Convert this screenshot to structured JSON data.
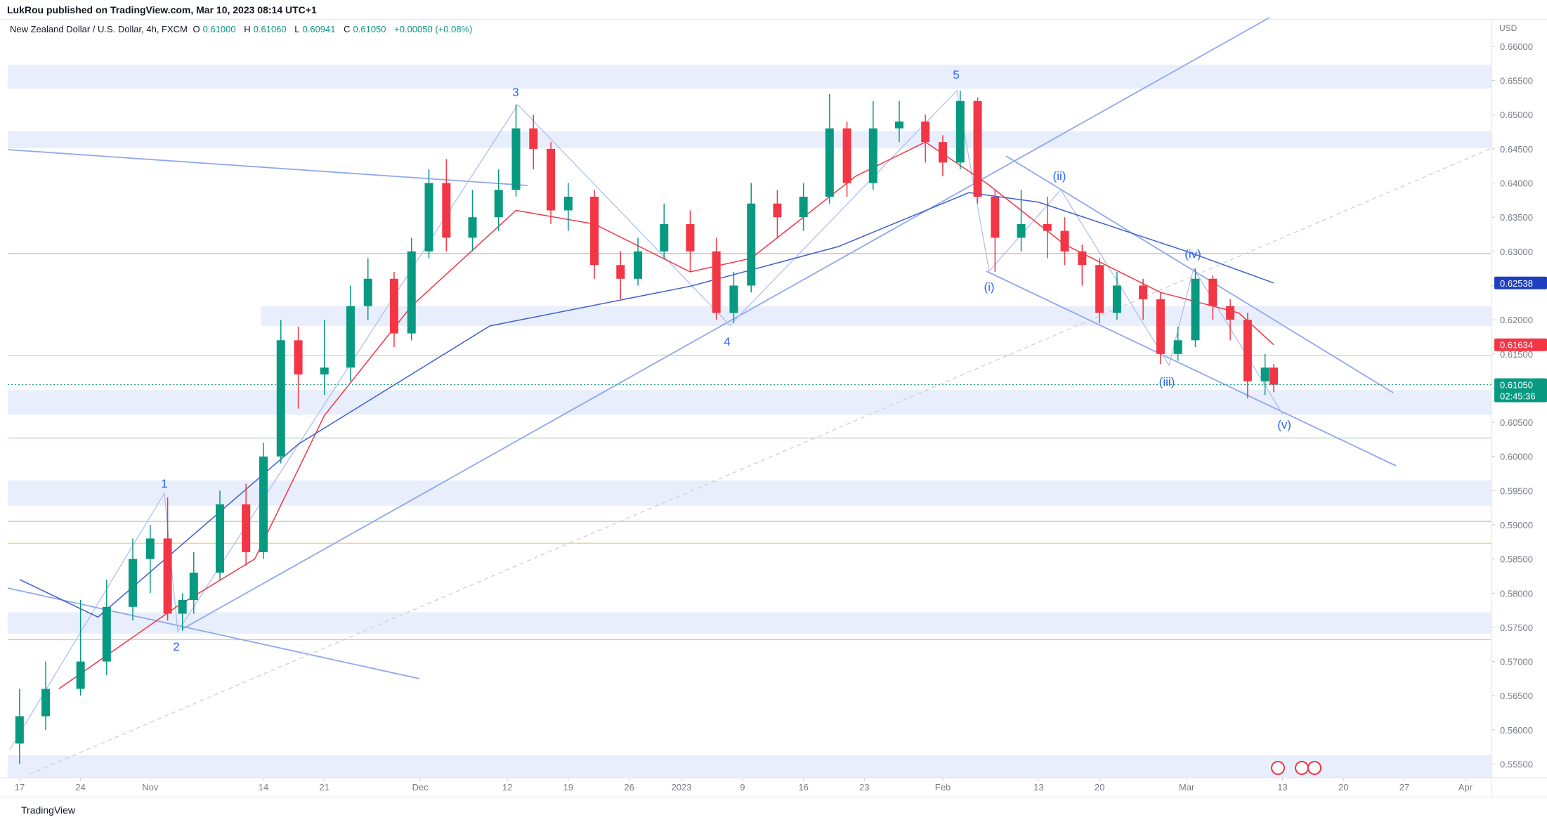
{
  "header": {
    "publisher": "LukRou published on TradingView.com, Mar 10, 2023 08:14 UTC+1",
    "symbol": "New Zealand Dollar / U.S. Dollar, 4h, FXCM",
    "ohlc": [
      {
        "key": "O",
        "value": "0.61000"
      },
      {
        "key": "H",
        "value": "0.61060"
      },
      {
        "key": "L",
        "value": "0.60941"
      },
      {
        "key": "C",
        "value": "0.61050"
      }
    ],
    "change": "+0.00050 (+0.08%)"
  },
  "footer": {
    "brand": "TradingView"
  },
  "chart_data": {
    "type": "candlestick",
    "y_axis_label": "USD",
    "up_color": "#089981",
    "down_color": "#f23645",
    "xlim": [
      -1.36,
      169
    ],
    "ylim": [
      0.553,
      0.6639
    ],
    "xticks": [
      {
        "value": 0,
        "label": "17"
      },
      {
        "value": 7,
        "label": "24"
      },
      {
        "value": 15,
        "label": "Nov"
      },
      {
        "value": 28,
        "label": "14"
      },
      {
        "value": 35,
        "label": "21"
      },
      {
        "value": 46,
        "label": "Dec"
      },
      {
        "value": 56,
        "label": "12"
      },
      {
        "value": 63,
        "label": "19"
      },
      {
        "value": 70,
        "label": "26"
      },
      {
        "value": 76,
        "label": "2023"
      },
      {
        "value": 83,
        "label": "9"
      },
      {
        "value": 90,
        "label": "16"
      },
      {
        "value": 97,
        "label": "23"
      },
      {
        "value": 106,
        "label": "Feb"
      },
      {
        "value": 117,
        "label": "13"
      },
      {
        "value": 124,
        "label": "20"
      },
      {
        "value": 134,
        "label": "Mar"
      },
      {
        "value": 145,
        "label": "13"
      },
      {
        "value": 152,
        "label": "20"
      },
      {
        "value": 159,
        "label": "27"
      },
      {
        "value": 166,
        "label": "Apr"
      }
    ],
    "yticks": [
      {
        "value": 0.555,
        "label": "0.55500"
      },
      {
        "value": 0.56,
        "label": "0.56000"
      },
      {
        "value": 0.565,
        "label": "0.56500"
      },
      {
        "value": 0.57,
        "label": "0.57000"
      },
      {
        "value": 0.575,
        "label": "0.57500"
      },
      {
        "value": 0.58,
        "label": "0.58000"
      },
      {
        "value": 0.585,
        "label": "0.58500"
      },
      {
        "value": 0.59,
        "label": "0.59000"
      },
      {
        "value": 0.595,
        "label": "0.59500"
      },
      {
        "value": 0.6,
        "label": "0.60000"
      },
      {
        "value": 0.605,
        "label": "0.60500"
      },
      {
        "value": 0.61,
        "label": "0.61000"
      },
      {
        "value": 0.615,
        "label": "0.61500"
      },
      {
        "value": 0.62,
        "label": "0.62000"
      },
      {
        "value": 0.625,
        "label": "0.62500"
      },
      {
        "value": 0.63,
        "label": "0.63000"
      },
      {
        "value": 0.635,
        "label": "0.63500"
      },
      {
        "value": 0.64,
        "label": "0.64000"
      },
      {
        "value": 0.645,
        "label": "0.64500"
      },
      {
        "value": 0.65,
        "label": "0.65000"
      },
      {
        "value": 0.655,
        "label": "0.65500"
      },
      {
        "value": 0.66,
        "label": "0.66000"
      }
    ],
    "x": [
      0,
      3,
      7,
      10,
      13,
      15,
      17,
      18.7,
      20,
      23,
      26,
      28,
      30,
      32,
      35,
      38,
      40,
      43,
      45,
      47,
      49,
      52,
      55,
      57,
      59,
      61,
      63,
      66,
      69,
      71,
      74,
      77,
      80,
      82,
      84,
      87,
      90,
      93,
      95,
      98,
      101,
      104,
      106,
      108,
      110,
      112,
      115,
      118,
      120,
      122,
      124,
      126,
      129,
      131,
      133,
      135,
      137,
      139,
      141,
      143,
      144
    ],
    "open": [
      0.558,
      0.562,
      0.566,
      0.57,
      0.578,
      0.585,
      0.588,
      0.577,
      0.579,
      0.583,
      0.593,
      0.586,
      0.6,
      0.617,
      0.612,
      0.613,
      0.622,
      0.626,
      0.618,
      0.63,
      0.64,
      0.632,
      0.635,
      0.639,
      0.648,
      0.645,
      0.636,
      0.638,
      0.628,
      0.626,
      0.63,
      0.634,
      0.63,
      0.621,
      0.625,
      0.637,
      0.635,
      0.638,
      0.648,
      0.64,
      0.648,
      0.649,
      0.646,
      0.643,
      0.652,
      0.638,
      0.632,
      0.634,
      0.633,
      0.63,
      0.628,
      0.621,
      0.625,
      0.623,
      0.615,
      0.617,
      0.626,
      0.622,
      0.62,
      0.611,
      0.613
    ],
    "high": [
      0.566,
      0.57,
      0.579,
      0.582,
      0.588,
      0.59,
      0.594,
      0.58,
      0.586,
      0.595,
      0.596,
      0.602,
      0.62,
      0.619,
      0.62,
      0.625,
      0.629,
      0.627,
      0.632,
      0.642,
      0.6435,
      0.639,
      0.642,
      0.6515,
      0.65,
      0.646,
      0.64,
      0.639,
      0.63,
      0.632,
      0.637,
      0.636,
      0.632,
      0.627,
      0.64,
      0.639,
      0.64,
      0.653,
      0.649,
      0.652,
      0.652,
      0.65,
      0.647,
      0.6535,
      0.6525,
      0.639,
      0.639,
      0.638,
      0.635,
      0.631,
      0.629,
      0.627,
      0.626,
      0.624,
      0.619,
      0.6275,
      0.6265,
      0.623,
      0.621,
      0.615,
      0.6135
    ],
    "low": [
      0.555,
      0.56,
      0.565,
      0.568,
      0.576,
      0.58,
      0.576,
      0.5745,
      0.577,
      0.582,
      0.584,
      0.585,
      0.599,
      0.607,
      0.609,
      0.611,
      0.62,
      0.616,
      0.617,
      0.629,
      0.63,
      0.63,
      0.633,
      0.638,
      0.642,
      0.634,
      0.633,
      0.626,
      0.623,
      0.625,
      0.629,
      0.627,
      0.62,
      0.6195,
      0.624,
      0.632,
      0.633,
      0.637,
      0.638,
      0.639,
      0.646,
      0.643,
      0.641,
      0.642,
      0.637,
      0.627,
      0.63,
      0.629,
      0.628,
      0.625,
      0.6195,
      0.62,
      0.62,
      0.6135,
      0.614,
      0.616,
      0.62,
      0.617,
      0.6085,
      0.609,
      0.6094
    ],
    "close": [
      0.562,
      0.566,
      0.57,
      0.578,
      0.585,
      0.588,
      0.577,
      0.579,
      0.583,
      0.593,
      0.586,
      0.6,
      0.617,
      0.612,
      0.613,
      0.622,
      0.626,
      0.618,
      0.63,
      0.64,
      0.632,
      0.635,
      0.639,
      0.648,
      0.645,
      0.636,
      0.638,
      0.628,
      0.626,
      0.63,
      0.634,
      0.63,
      0.621,
      0.625,
      0.637,
      0.635,
      0.638,
      0.648,
      0.64,
      0.648,
      0.649,
      0.646,
      0.643,
      0.652,
      0.638,
      0.632,
      0.634,
      0.633,
      0.63,
      0.628,
      0.621,
      0.625,
      0.623,
      0.615,
      0.617,
      0.626,
      0.622,
      0.62,
      0.611,
      0.613,
      0.6105
    ],
    "lines": [
      {
        "color": "#f23645",
        "x": [
          4.5,
          18,
          27,
          35,
          45,
          57,
          66,
          77,
          84,
          96,
          104,
          111,
          120,
          131,
          140,
          144
        ],
        "values": [
          0.566,
          0.578,
          0.585,
          0.606,
          0.622,
          0.636,
          0.634,
          0.627,
          0.629,
          0.641,
          0.646,
          0.64,
          0.631,
          0.624,
          0.621,
          0.61634
        ]
      },
      {
        "color": "#3f5fd0",
        "x": [
          0,
          9,
          32,
          54,
          77,
          94,
          109,
          117,
          134,
          144
        ],
        "values": [
          0.582,
          0.5765,
          0.6018,
          0.6191,
          0.6249,
          0.6307,
          0.6386,
          0.6372,
          0.63,
          0.62538
        ]
      }
    ],
    "zones": [
      {
        "range": [
          0.6538,
          0.6573
        ]
      },
      {
        "range": [
          0.6451,
          0.6476
        ]
      },
      {
        "range": [
          0.6191,
          0.622
        ],
        "from": 27.7
      },
      {
        "range": [
          0.6061,
          0.6097
        ]
      },
      {
        "range": [
          0.5928,
          0.5965
        ]
      },
      {
        "range": [
          0.5741,
          0.5772
        ]
      },
      {
        "range": [
          0.553,
          0.5563
        ]
      }
    ],
    "hlines": [
      {
        "value": 0.6297,
        "color": "#f7a8ae"
      },
      {
        "value": 0.6148,
        "color": "#b9dec0"
      },
      {
        "value": 0.6027,
        "color": "#9fd4a8"
      },
      {
        "value": 0.5905,
        "color": "#9fd4a8"
      },
      {
        "value": 0.5873,
        "color": "#f9c97a"
      },
      {
        "value": 0.5732,
        "color": "#c9cbd1"
      }
    ],
    "annotations": [
      "1",
      "2",
      "3",
      "4",
      "5",
      "(i)",
      "(ii)",
      "(iii)",
      "(iv)",
      "(v)"
    ],
    "price_labels": [
      {
        "value": 0.62538,
        "color": "#1e3fbf"
      },
      {
        "value": 0.61634,
        "color": "#f23645"
      },
      {
        "value": 0.6105,
        "label": "0.61050",
        "color": "#089981",
        "countdown": "02:45:36"
      }
    ]
  }
}
